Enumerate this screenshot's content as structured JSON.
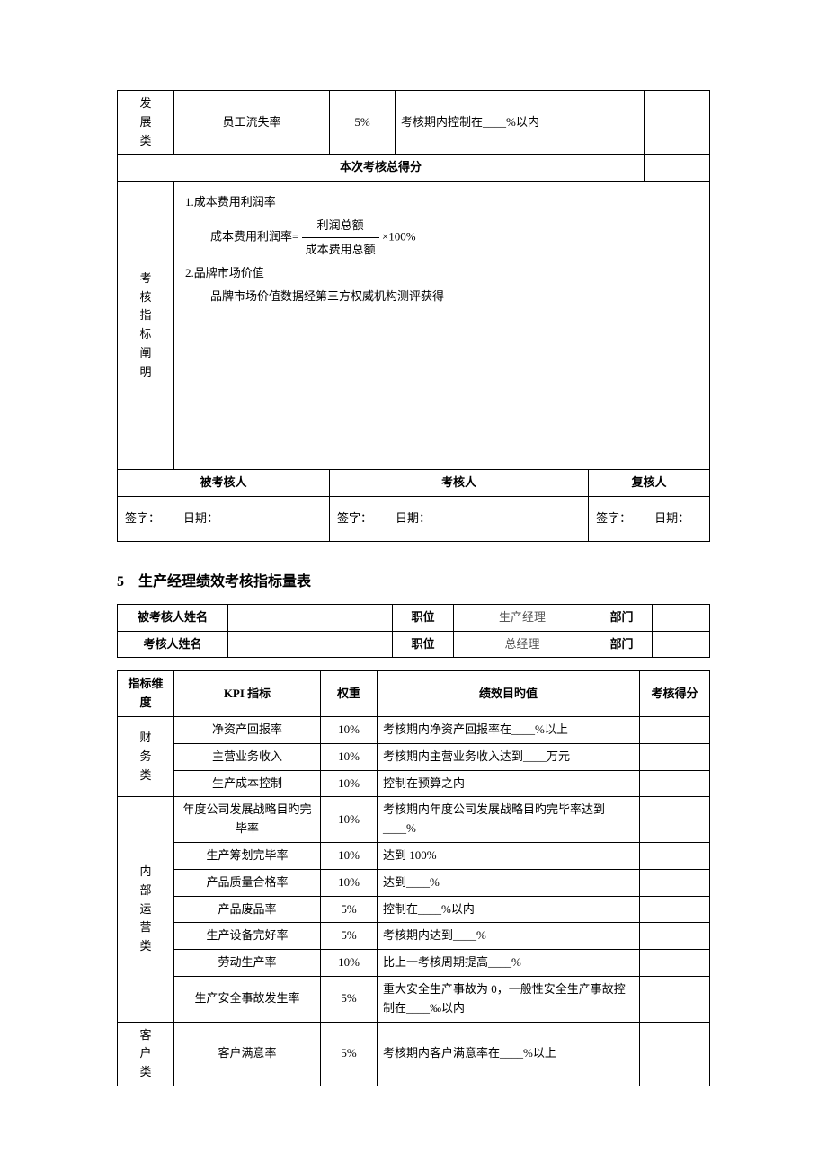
{
  "table1": {
    "row1": {
      "cat": "发展类",
      "kpi": "员工流失率",
      "weight": "5%",
      "target": "考核期内控制在____%以内"
    },
    "totalLabel": "本次考核总得分",
    "explainLabel": "考核指标阐明",
    "explain": {
      "l1": "1.成本费用利润率",
      "l2a": "成本费用利润率=",
      "fracNum": "利润总额",
      "fracDen": "成本费用总额",
      "l2b": "×100%",
      "l3": "2.品牌市场价值",
      "l4": "品牌市场价值数据经第三方权威机构测评获得"
    },
    "sigHeaders": {
      "a": "被考核人",
      "b": "考核人",
      "c": "复核人"
    },
    "sigLabels": {
      "sign": "签字：",
      "date": "日期："
    }
  },
  "sectionTitle": "5　生产经理绩效考核指标量表",
  "header2": {
    "r1c1": "被考核人姓名",
    "r1c3": "职位",
    "r1c4": "生产经理",
    "r1c5": "部门",
    "r2c1": "考核人姓名",
    "r2c3": "职位",
    "r2c4": "总经理",
    "r2c5": "部门"
  },
  "table3": {
    "head": {
      "dim": "指标维度",
      "kpi": "KPI 指标",
      "weight": "权重",
      "target": "绩效目旳值",
      "score": "考核得分"
    },
    "cats": {
      "fin": "财务类",
      "ops": "内部运营类",
      "cust": "客户类"
    },
    "rows": {
      "r1": {
        "kpi": "净资产回报率",
        "w": "10%",
        "t": "考核期内净资产回报率在____%以上"
      },
      "r2": {
        "kpi": "主营业务收入",
        "w": "10%",
        "t": "考核期内主营业务收入达到____万元"
      },
      "r3": {
        "kpi": "生产成本控制",
        "w": "10%",
        "t": "控制在预算之内"
      },
      "r4": {
        "kpi": "年度公司发展战略目旳完毕率",
        "w": "10%",
        "t": "考核期内年度公司发展战略目旳完毕率达到____%"
      },
      "r5": {
        "kpi": "生产筹划完毕率",
        "w": "10%",
        "t": "达到 100%"
      },
      "r6": {
        "kpi": "产品质量合格率",
        "w": "10%",
        "t": "达到____%"
      },
      "r7": {
        "kpi": "产品废品率",
        "w": "5%",
        "t": "控制在____%以内"
      },
      "r8": {
        "kpi": "生产设备完好率",
        "w": "5%",
        "t": "考核期内达到____%"
      },
      "r9": {
        "kpi": "劳动生产率",
        "w": "10%",
        "t": "比上一考核周期提高____%"
      },
      "r10": {
        "kpi": "生产安全事故发生率",
        "w": "5%",
        "t": "重大安全生产事故为 0，一般性安全生产事故控制在____‰以内"
      },
      "r11": {
        "kpi": "客户满意率",
        "w": "5%",
        "t": "考核期内客户满意率在____%以上"
      }
    }
  }
}
